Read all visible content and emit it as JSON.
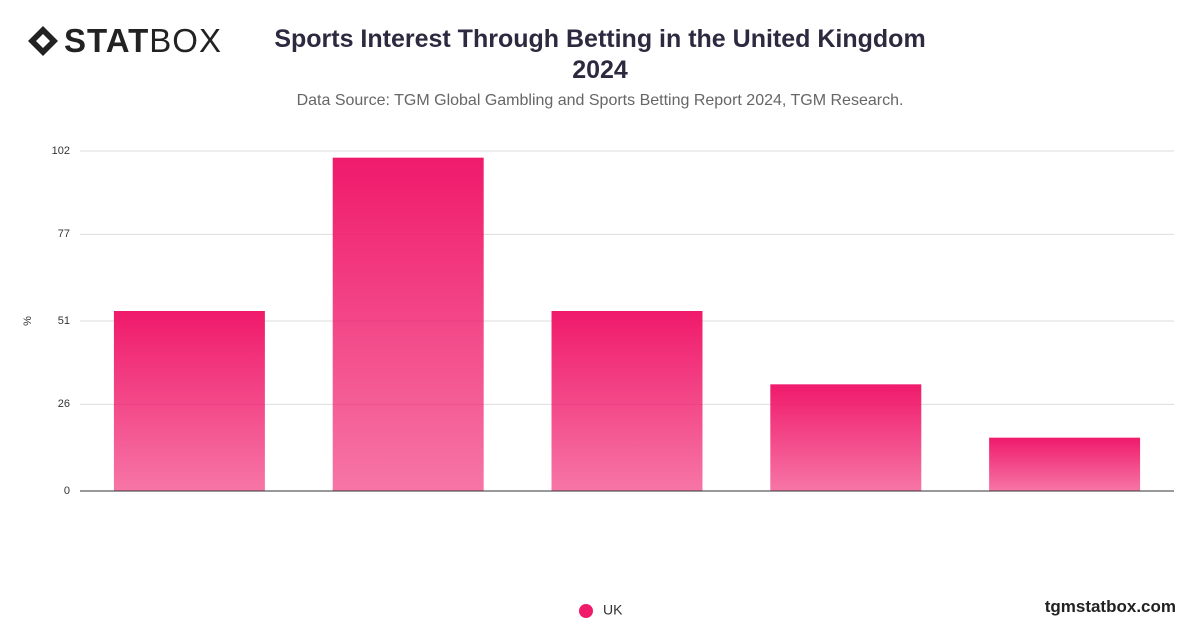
{
  "logo": {
    "bold": "STAT",
    "light": "BOX"
  },
  "footer": "tgmstatbox.com",
  "chart_data": {
    "type": "bar",
    "title": "Sports Interest Through Betting in the United Kingdom 2024",
    "subtitle": "Data Source: TGM Global Gambling and Sports Betting Report 2024, TGM Research.",
    "y_label": "%",
    "categories": [
      null,
      null,
      null,
      null,
      null
    ],
    "series": [
      {
        "name": "UK",
        "color": "#f01a6b",
        "values": [
          54,
          100,
          54,
          32,
          16
        ]
      }
    ],
    "ylim": [
      0,
      102
    ],
    "yticks": [
      0,
      26,
      51,
      77,
      102
    ],
    "grid": true
  }
}
